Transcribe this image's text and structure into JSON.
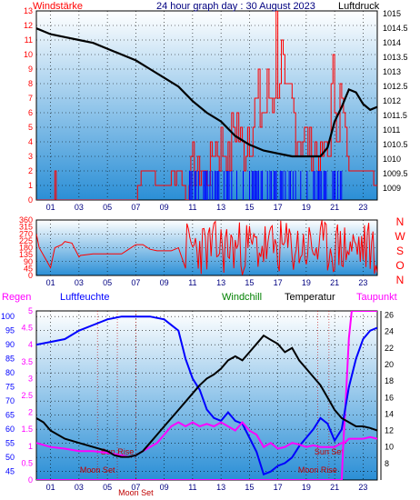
{
  "colors": {
    "bg_top": "#ffffff",
    "bg_bottom": "#2b8fd6",
    "wind_speed": "#ff0000",
    "wind_gust": "#0000ff",
    "pressure": "#000000",
    "direction": "#ff0000",
    "humidity": "#0000ff",
    "temperature": "#000000",
    "dewpoint": "#ff00ff",
    "windchill": "#008000",
    "rain_axis": "#ff00ff",
    "humidity_axis": "#0000ff",
    "moon_sun_text": "#c00000"
  },
  "chart_data": [
    {
      "type": "line",
      "id": "wind-pressure",
      "title": "24 hour graph day : 30 August 2023",
      "left_label": "Windstärke",
      "right_label": "Luftdruck",
      "x_ticks": [
        "01",
        "03",
        "05",
        "07",
        "09",
        "11",
        "13",
        "15",
        "17",
        "19",
        "21",
        "23"
      ],
      "y_left_ticks": [
        "0",
        "1",
        "2",
        "3",
        "4",
        "5",
        "6",
        "7",
        "8",
        "9",
        "10",
        "11",
        "12",
        "13"
      ],
      "y_left_range": [
        0,
        13
      ],
      "y_right_ticks": [
        "1009",
        "1009.5",
        "1010",
        "1010.5",
        "1011",
        "1011.5",
        "1012",
        "1012.5",
        "1013",
        "1013.5",
        "1014",
        "1014.5",
        "1015"
      ],
      "y_right_range": [
        1008.6,
        1015.1
      ],
      "series": [
        {
          "name": "Luftdruck",
          "x": [
            0,
            1,
            2,
            3,
            4,
            5,
            6,
            7,
            8,
            9,
            10,
            11,
            12,
            13,
            14,
            15,
            16,
            17,
            18,
            19,
            20,
            20.5,
            21,
            21.5,
            22,
            22.5,
            23,
            23.5,
            24
          ],
          "y": [
            1014.5,
            1014.3,
            1014.2,
            1014.1,
            1014.0,
            1013.8,
            1013.6,
            1013.4,
            1013.1,
            1012.8,
            1012.5,
            1012.0,
            1011.6,
            1011.3,
            1010.8,
            1010.5,
            1010.3,
            1010.2,
            1010.1,
            1010.1,
            1010.1,
            1010.4,
            1011.3,
            1011.8,
            1012.4,
            1012.3,
            1011.9,
            1011.7,
            1011.8
          ]
        },
        {
          "name": "Wind speed",
          "x": [
            0,
            1.2,
            1.3,
            1.4,
            7,
            7.5,
            8,
            8.5,
            9,
            9.5,
            10,
            10.5,
            11,
            11.5,
            12,
            12.5,
            13,
            13.5,
            14,
            14.5,
            15,
            15.5,
            16,
            16.5,
            17,
            17.5,
            18,
            18.5,
            19,
            19.5,
            20,
            20.5,
            21,
            21.5,
            22,
            22.5,
            23,
            23.5,
            24
          ],
          "y": [
            0,
            0,
            2,
            0,
            0,
            2,
            2,
            2,
            1,
            2,
            3,
            0,
            3,
            2,
            2,
            4,
            4,
            3,
            6,
            4,
            6,
            7,
            7,
            8,
            13,
            6,
            7,
            5,
            4,
            4,
            3,
            4,
            9,
            7,
            2,
            2,
            2,
            2,
            0
          ]
        }
      ]
    },
    {
      "type": "line",
      "id": "direction",
      "right_label": "N W S O N",
      "x_ticks": [
        "01",
        "03",
        "05",
        "07",
        "09",
        "11",
        "13",
        "15",
        "17",
        "19",
        "21",
        "23"
      ],
      "y_ticks": [
        "0",
        "45",
        "90",
        "135",
        "180",
        "225",
        "270",
        "315",
        "360"
      ],
      "y_range": [
        0,
        360
      ],
      "series": [
        {
          "name": "Direction",
          "x": [
            0,
            0.2,
            1,
            1.3,
            1.8,
            2,
            2.5,
            3,
            3.1,
            4,
            5,
            6,
            7,
            7.5,
            8,
            8.5,
            9,
            9.5,
            10,
            10.5,
            11,
            11.5,
            12,
            12.5,
            13,
            13.5,
            14,
            14.5,
            15,
            15.5,
            16,
            16.5,
            17,
            17.5,
            18,
            18.5,
            19,
            19.5,
            20,
            20.5,
            21,
            21.5,
            22,
            22.5,
            23,
            23.5,
            24
          ],
          "y": [
            270,
            180,
            50,
            180,
            200,
            220,
            210,
            120,
            130,
            140,
            140,
            140,
            200,
            200,
            170,
            160,
            160,
            160,
            180,
            340,
            40,
            300,
            80,
            260,
            30,
            320,
            150,
            240,
            60,
            310,
            100,
            270,
            40,
            330,
            120,
            260,
            60,
            300,
            90,
            250,
            30,
            320,
            160,
            280,
            120,
            350,
            20
          ]
        }
      ]
    },
    {
      "type": "line",
      "id": "temperature",
      "legend": [
        "Regen",
        "Luftfeuchte",
        "Windchill",
        "Temperatur",
        "Taupunkt"
      ],
      "x_ticks": [
        "01",
        "03",
        "05",
        "07",
        "09",
        "11",
        "13",
        "15",
        "17",
        "19",
        "21",
        "23"
      ],
      "y_rain_ticks": [
        "0",
        "0.5",
        "1",
        "1.5",
        "2",
        "2.5",
        "3",
        "3.5",
        "4",
        "4.5",
        "5"
      ],
      "y_rain_range": [
        0,
        5
      ],
      "y_humidity_ticks": [
        "45",
        "50",
        "55",
        "60",
        "65",
        "70",
        "75",
        "80",
        "85",
        "90",
        "95",
        "100"
      ],
      "y_humidity_range": [
        42,
        102
      ],
      "y_temp_ticks": [
        "8",
        "10",
        "12",
        "14",
        "16",
        "18",
        "20",
        "22",
        "24",
        "26"
      ],
      "y_temp_range": [
        6,
        26.5
      ],
      "annotations": [
        "Moon Set",
        "Sun Rise",
        "Moon Set",
        "Moon Rise",
        "Sun Set"
      ],
      "series": [
        {
          "name": "Luftfeuchte",
          "x": [
            0,
            1,
            2,
            3,
            4,
            5,
            6,
            7,
            8,
            9,
            10,
            10.5,
            11,
            11.5,
            12,
            12.5,
            13,
            13.5,
            14,
            14.5,
            15,
            15.5,
            16,
            16.5,
            17,
            17.5,
            18,
            18.5,
            19,
            19.5,
            20,
            20.5,
            21,
            21.5,
            22,
            22.5,
            23,
            23.5,
            24
          ],
          "y": [
            90,
            91,
            92,
            95,
            97,
            99,
            100,
            100,
            100,
            99,
            95,
            85,
            78,
            74,
            67,
            64,
            63,
            66,
            63,
            62,
            57,
            52,
            44,
            45,
            47,
            48,
            50,
            54,
            57,
            60,
            64,
            62,
            56,
            60,
            75,
            85,
            92,
            95,
            96
          ]
        },
        {
          "name": "Temperatur",
          "x": [
            0,
            0.5,
            1,
            2,
            3,
            4,
            5,
            5.5,
            6,
            6.5,
            7,
            7.5,
            8,
            8.5,
            9,
            9.5,
            10,
            10.5,
            11,
            11.5,
            12,
            12.5,
            13,
            13.5,
            14,
            14.5,
            15,
            15.5,
            16,
            16.5,
            17,
            17.5,
            18,
            18.5,
            19,
            19.5,
            20,
            20.5,
            21,
            21.5,
            22,
            22.5,
            23,
            23.5,
            24
          ],
          "y": [
            13.5,
            13,
            12,
            11,
            10.5,
            10,
            9.5,
            9,
            8.8,
            8.8,
            9,
            9.5,
            10.5,
            11.5,
            12.5,
            13.5,
            14.5,
            15.5,
            16.5,
            17.5,
            18.3,
            18.8,
            19.5,
            20.5,
            21,
            20.5,
            21.5,
            22.5,
            23.5,
            23,
            22.5,
            21.5,
            22,
            20.5,
            19.5,
            18.5,
            17.5,
            16,
            14.5,
            13.5,
            13,
            12.5,
            12.5,
            12.3,
            12
          ]
        },
        {
          "name": "Taupunkt",
          "x": [
            0,
            1,
            2,
            3,
            4,
            5,
            6,
            6.5,
            7,
            7.5,
            8,
            8.5,
            9,
            9.5,
            10,
            10.5,
            11,
            11.5,
            12,
            12.5,
            13,
            13.5,
            14,
            14.5,
            15,
            15.5,
            16,
            16.5,
            17,
            17.5,
            18,
            18.5,
            19,
            19.5,
            20,
            20.5,
            21,
            21.5,
            21.7,
            22,
            22.5,
            23,
            23.5,
            24
          ],
          "y": [
            10.5,
            10,
            9.8,
            9.5,
            9.5,
            9.3,
            9,
            8.8,
            9,
            9.5,
            10,
            10.5,
            11.5,
            12.5,
            13,
            12.5,
            13,
            12.5,
            12.8,
            12.5,
            13,
            12.5,
            12,
            13,
            12,
            11.5,
            10,
            10.5,
            9.8,
            10,
            10.5,
            10.3,
            10,
            10.2,
            10,
            10,
            10,
            10.5,
            10.5,
            11,
            11,
            11,
            11.2,
            11
          ]
        },
        {
          "name": "Regen",
          "x": [
            0,
            21.5,
            21.6,
            21.8,
            22.0,
            22.2,
            24
          ],
          "y": [
            0,
            0,
            1,
            2.5,
            4.2,
            5,
            5
          ]
        }
      ]
    }
  ]
}
